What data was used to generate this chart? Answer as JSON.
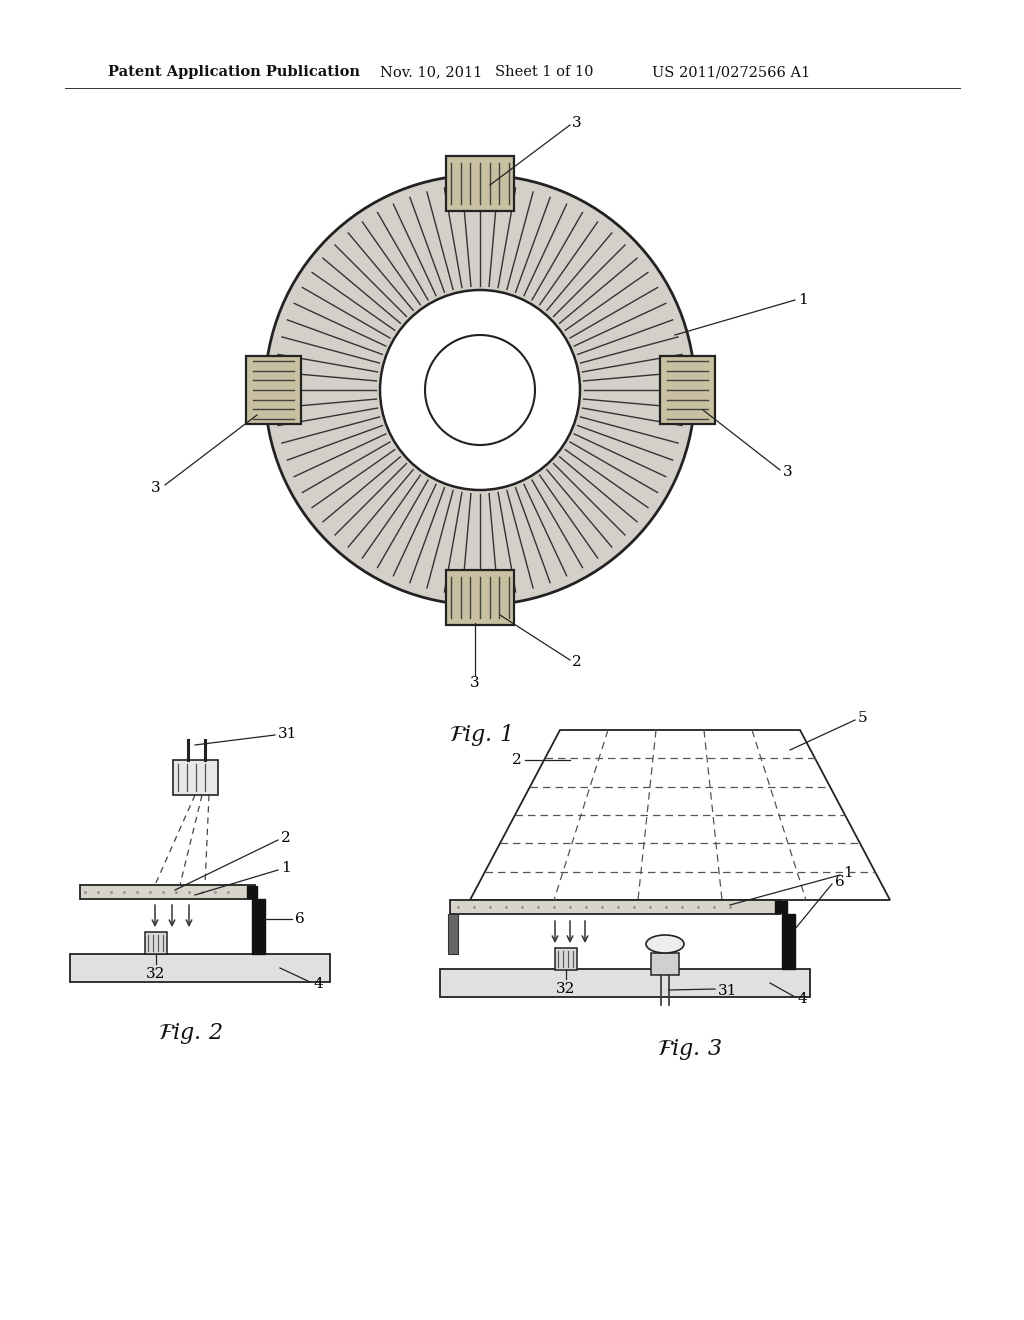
{
  "bg_color": "#ffffff",
  "header_text": "Patent Application Publication",
  "header_date": "Nov. 10, 2011",
  "header_sheet": "Sheet 1 of 10",
  "header_patent": "US 2011/0272566 A1",
  "disk_fill": "#d4cfc9",
  "disk_edge": "#222222",
  "sensor_fill": "#c8c0a0",
  "sensor_edge": "#222222",
  "white": "#ffffff",
  "dark": "#111111",
  "gray_base": "#e0e0e0",
  "gray_plate": "#d8d4cc"
}
